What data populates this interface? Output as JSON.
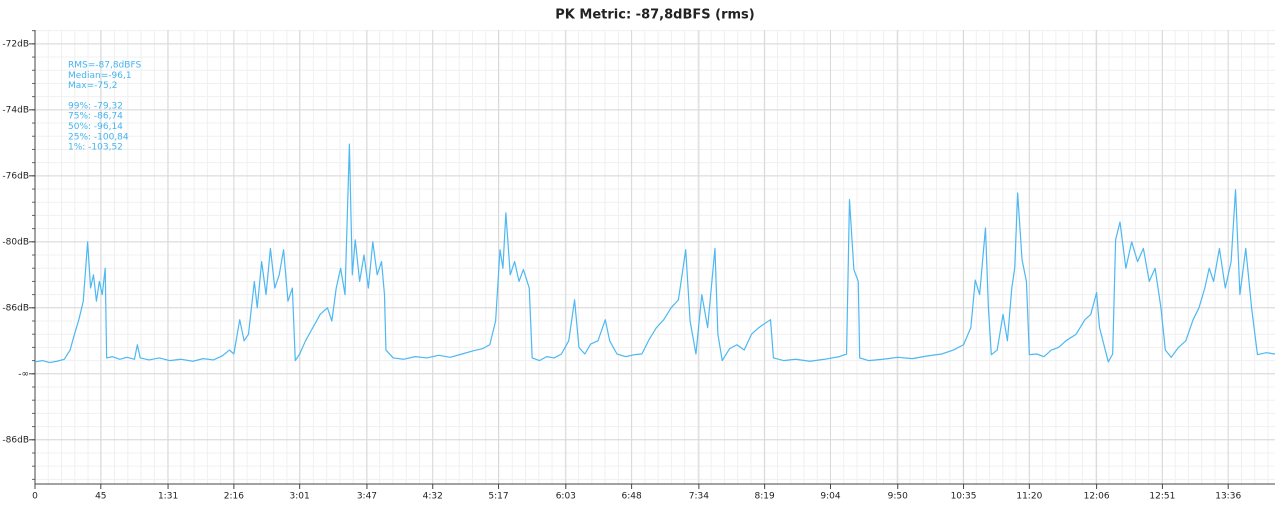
{
  "chart_data": {
    "type": "line",
    "title": "PK Metric: -87,8dBFS (rms)",
    "annotations": [
      "RMS=-87,8dBFS",
      "Median=-96,1",
      "Max=-75,2",
      "99%: -79,32",
      "75%: -86,74",
      "50%: -96,14",
      "25%: -100,84",
      "1%: -103,52"
    ],
    "color": "#4db8f2",
    "grid": true,
    "xlim": [
      0,
      848
    ],
    "ylim": [
      -1.67,
      5.21
    ],
    "xticks": [
      0,
      45,
      {
        "value": 91,
        "label": "1:31"
      },
      {
        "value": 136,
        "label": "2:16"
      },
      {
        "value": 181,
        "label": "3:01"
      },
      {
        "value": 227,
        "label": "3:47"
      },
      {
        "value": 272,
        "label": "4:32"
      },
      {
        "value": 317,
        "label": "5:17"
      },
      {
        "value": 363,
        "label": "6:03"
      },
      {
        "value": 408,
        "label": "6:48"
      },
      {
        "value": 454,
        "label": "7:34"
      },
      {
        "value": 499,
        "label": "8:19"
      },
      {
        "value": 544,
        "label": "9:04"
      },
      {
        "value": 590,
        "label": "9:50"
      },
      {
        "value": 635,
        "label": "10:35"
      },
      {
        "value": 680,
        "label": "11:20"
      },
      {
        "value": 726,
        "label": "12:06"
      },
      {
        "value": 771,
        "label": "12:51"
      },
      {
        "value": 816,
        "label": "13:36"
      }
    ],
    "yticks": [
      {
        "value": 5,
        "label": "-72dB"
      },
      {
        "value": 4,
        "label": "-74dB"
      },
      {
        "value": 3,
        "label": "-76dB"
      },
      {
        "value": 2,
        "label": "-80dB"
      },
      {
        "value": 1,
        "label": "-86dB"
      },
      {
        "value": 0,
        "label": "-∞"
      },
      {
        "value": -1,
        "label": "-86dB"
      }
    ],
    "x": [
      0,
      5,
      10,
      15,
      20,
      24,
      27,
      30,
      33,
      36,
      38,
      40,
      42,
      44,
      46,
      48,
      49,
      53,
      58,
      63,
      68,
      70,
      72,
      78,
      85,
      92,
      100,
      108,
      115,
      122,
      128,
      133,
      136,
      140,
      143,
      146,
      150,
      152,
      155,
      158,
      161,
      164,
      167,
      170,
      173,
      176,
      178,
      181,
      185,
      190,
      195,
      200,
      203,
      206,
      209,
      212,
      215,
      217,
      219,
      222,
      225,
      228,
      231,
      234,
      237,
      239,
      240,
      245,
      252,
      260,
      268,
      276,
      284,
      292,
      300,
      306,
      311,
      315,
      318,
      320,
      322,
      325,
      328,
      331,
      334,
      338,
      340,
      345,
      350,
      355,
      360,
      365,
      369,
      372,
      376,
      380,
      385,
      390,
      393,
      398,
      404,
      410,
      415,
      420,
      425,
      430,
      435,
      440,
      445,
      448,
      452,
      456,
      460,
      465,
      467,
      470,
      475,
      480,
      485,
      490,
      495,
      503,
      505,
      512,
      520,
      530,
      540,
      550,
      555,
      557,
      560,
      563,
      564,
      570,
      580,
      590,
      600,
      610,
      620,
      628,
      635,
      640,
      643,
      646,
      650,
      652,
      654,
      658,
      662,
      665,
      668,
      670,
      672,
      675,
      678,
      680,
      685,
      690,
      695,
      700,
      705,
      712,
      718,
      722,
      726,
      728,
      734,
      737,
      739,
      742,
      746,
      750,
      754,
      758,
      762,
      766,
      770,
      773,
      777,
      782,
      787,
      792,
      796,
      800,
      803,
      806,
      810,
      814,
      818,
      821,
      824,
      828,
      832,
      836,
      842,
      848
    ],
    "values": [
      0.18,
      0.2,
      0.17,
      0.19,
      0.22,
      0.36,
      0.6,
      0.82,
      1.1,
      2.0,
      1.3,
      1.5,
      1.1,
      1.4,
      1.2,
      1.6,
      0.24,
      0.26,
      0.22,
      0.25,
      0.22,
      0.44,
      0.24,
      0.21,
      0.24,
      0.2,
      0.22,
      0.19,
      0.23,
      0.21,
      0.27,
      0.36,
      0.3,
      0.82,
      0.5,
      0.6,
      1.4,
      1.0,
      1.7,
      1.2,
      1.9,
      1.3,
      1.5,
      1.88,
      1.1,
      1.3,
      0.2,
      0.3,
      0.5,
      0.7,
      0.9,
      1.0,
      0.8,
      1.3,
      1.6,
      1.2,
      3.48,
      1.5,
      2.03,
      1.4,
      1.8,
      1.3,
      2.0,
      1.5,
      1.7,
      1.2,
      0.36,
      0.24,
      0.22,
      0.26,
      0.24,
      0.28,
      0.25,
      0.3,
      0.35,
      0.38,
      0.44,
      0.8,
      1.88,
      1.6,
      2.44,
      1.5,
      1.7,
      1.4,
      1.58,
      1.3,
      0.24,
      0.2,
      0.26,
      0.24,
      0.3,
      0.5,
      1.12,
      0.4,
      0.3,
      0.45,
      0.5,
      0.82,
      0.5,
      0.3,
      0.26,
      0.29,
      0.3,
      0.52,
      0.7,
      0.82,
      1.0,
      1.12,
      1.88,
      0.8,
      0.3,
      1.2,
      0.7,
      1.9,
      0.6,
      0.2,
      0.38,
      0.44,
      0.36,
      0.6,
      0.7,
      0.82,
      0.24,
      0.2,
      0.22,
      0.19,
      0.22,
      0.26,
      0.3,
      2.64,
      1.58,
      1.4,
      0.24,
      0.2,
      0.22,
      0.25,
      0.23,
      0.27,
      0.3,
      0.36,
      0.44,
      0.7,
      1.42,
      1.2,
      2.21,
      1.0,
      0.29,
      0.36,
      0.9,
      0.5,
      1.3,
      1.6,
      2.74,
      1.73,
      1.4,
      0.29,
      0.3,
      0.26,
      0.36,
      0.4,
      0.5,
      0.6,
      0.82,
      0.9,
      1.23,
      0.7,
      0.18,
      0.3,
      2.03,
      2.3,
      1.6,
      2.0,
      1.7,
      1.9,
      1.4,
      1.6,
      1.0,
      0.36,
      0.25,
      0.4,
      0.5,
      0.82,
      1.0,
      1.3,
      1.6,
      1.4,
      1.9,
      1.3,
      1.7,
      2.79,
      1.2,
      1.9,
      1.0,
      0.29,
      0.32,
      0.3
    ]
  }
}
